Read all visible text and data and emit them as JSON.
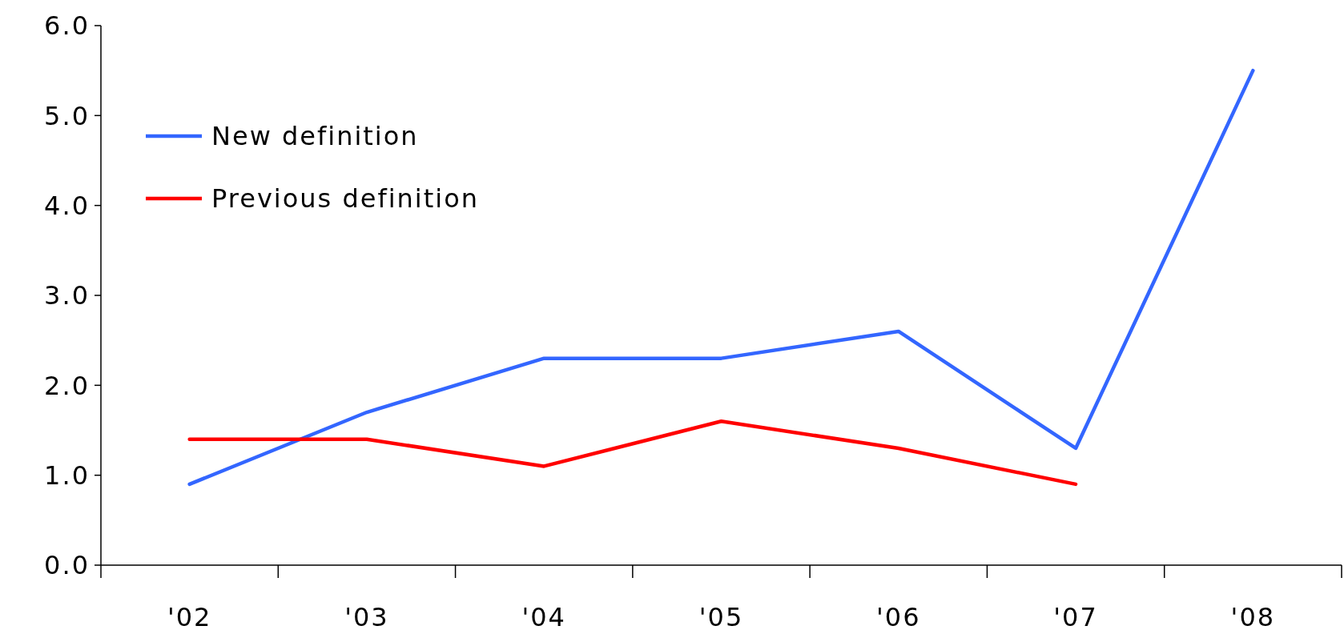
{
  "chart_data": {
    "type": "line",
    "categories": [
      "'02",
      "'03",
      "'04",
      "'05",
      "'06",
      "'07",
      "'08"
    ],
    "series": [
      {
        "name": "New definition",
        "color": "#3366ff",
        "values": [
          0.9,
          1.7,
          2.3,
          2.3,
          2.6,
          1.3,
          5.5
        ]
      },
      {
        "name": "Previous definition",
        "color": "#ff0000",
        "values": [
          1.4,
          1.4,
          1.1,
          1.6,
          1.3,
          0.9,
          null
        ]
      }
    ],
    "ylim": [
      0,
      6
    ],
    "yticks": [
      {
        "value": 0,
        "label": "0.0"
      },
      {
        "value": 1,
        "label": "1.0"
      },
      {
        "value": 2,
        "label": "2.0"
      },
      {
        "value": 3,
        "label": "3.0"
      },
      {
        "value": 4,
        "label": "4.0"
      },
      {
        "value": 5,
        "label": "5.0"
      },
      {
        "value": 6,
        "label": "6.0"
      }
    ],
    "grid": false,
    "legend": "top left",
    "marker": "none",
    "line_style": "solid"
  }
}
